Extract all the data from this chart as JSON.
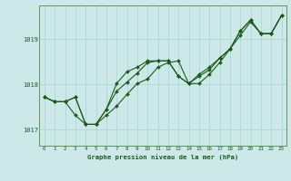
{
  "title": "Graphe pression niveau de la mer (hPa)",
  "background_color": "#cce8e8",
  "grid_color": "#aad0d0",
  "line_color": "#1a5c1a",
  "x_values": [
    0,
    1,
    2,
    3,
    4,
    5,
    6,
    7,
    8,
    9,
    10,
    11,
    12,
    13,
    14,
    15,
    16,
    17,
    18,
    19,
    20,
    21,
    22,
    23
  ],
  "line1": [
    1017.72,
    1017.62,
    1017.62,
    1017.72,
    1017.12,
    1017.12,
    1017.45,
    1017.85,
    1018.05,
    1018.25,
    1018.48,
    1018.52,
    1018.52,
    1018.18,
    1018.02,
    1018.22,
    1018.38,
    1018.58,
    1018.78,
    1019.18,
    1019.42,
    1019.12,
    1019.12,
    1019.52
  ],
  "line2": [
    1017.72,
    1017.62,
    1017.62,
    1017.72,
    1017.12,
    1017.12,
    1017.45,
    1018.02,
    1018.28,
    1018.38,
    1018.52,
    1018.52,
    1018.52,
    1018.18,
    1018.02,
    1018.18,
    1018.32,
    1018.58,
    1018.78,
    1019.08,
    1019.38,
    1019.12,
    1019.12,
    1019.52
  ],
  "line3": [
    1017.72,
    1017.62,
    1017.62,
    1017.32,
    1017.12,
    1017.12,
    1017.32,
    1017.52,
    1017.78,
    1018.02,
    1018.12,
    1018.38,
    1018.48,
    1018.52,
    1018.02,
    1018.02,
    1018.22,
    1018.48,
    1018.78,
    1019.18,
    1019.42,
    1019.12,
    1019.12,
    1019.52
  ],
  "yticks": [
    1017,
    1018,
    1019
  ],
  "ylim": [
    1016.65,
    1019.75
  ],
  "xlim": [
    -0.5,
    23.5
  ]
}
